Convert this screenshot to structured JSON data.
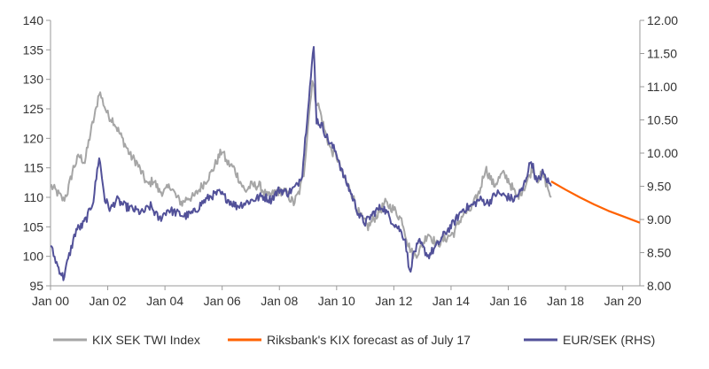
{
  "chart_data": {
    "type": "line",
    "title": "",
    "xlabel": "",
    "ylabel": "",
    "x_tick_labels": [
      "Jan 00",
      "Jan 02",
      "Jan 04",
      "Jan 06",
      "Jan 08",
      "Jan 10",
      "Jan 12",
      "Jan 14",
      "Jan 16",
      "Jan 18",
      "Jan 20"
    ],
    "x_tick_years": [
      2000,
      2002,
      2004,
      2006,
      2008,
      2010,
      2012,
      2014,
      2016,
      2018,
      2020
    ],
    "xlim": [
      2000,
      2020.6
    ],
    "y_left": {
      "lim": [
        95,
        140
      ],
      "ticks": [
        95,
        100,
        105,
        110,
        115,
        120,
        125,
        130,
        135,
        140
      ]
    },
    "y_right": {
      "lim": [
        8.0,
        12.0
      ],
      "ticks": [
        "8.00",
        "8.50",
        "9.00",
        "9.50",
        "10.00",
        "10.50",
        "11.00",
        "11.50",
        "12.00"
      ]
    },
    "legend_position": "bottom",
    "colors": {
      "kix": "#a6a6a6",
      "forecast": "#ff6200",
      "eursek": "#525199",
      "axis": "#9a9a9a"
    },
    "series": [
      {
        "name": "KIX SEK TWI Index",
        "axis": "left",
        "color": "#a6a6a6",
        "points": [
          [
            2000.0,
            112
          ],
          [
            2000.2,
            111
          ],
          [
            2000.45,
            109.5
          ],
          [
            2000.6,
            111
          ],
          [
            2000.8,
            115
          ],
          [
            2001.0,
            117
          ],
          [
            2001.2,
            116
          ],
          [
            2001.4,
            121
          ],
          [
            2001.6,
            125
          ],
          [
            2001.7,
            128
          ],
          [
            2001.85,
            126
          ],
          [
            2002.0,
            124
          ],
          [
            2002.2,
            123
          ],
          [
            2002.4,
            121
          ],
          [
            2002.6,
            119
          ],
          [
            2002.8,
            117
          ],
          [
            2003.0,
            116
          ],
          [
            2003.2,
            114
          ],
          [
            2003.4,
            112
          ],
          [
            2003.6,
            113
          ],
          [
            2003.8,
            111
          ],
          [
            2004.0,
            111
          ],
          [
            2004.2,
            112
          ],
          [
            2004.4,
            110
          ],
          [
            2004.6,
            109
          ],
          [
            2004.8,
            110
          ],
          [
            2005.0,
            110
          ],
          [
            2005.3,
            112
          ],
          [
            2005.6,
            114
          ],
          [
            2005.8,
            116
          ],
          [
            2006.0,
            118
          ],
          [
            2006.15,
            116
          ],
          [
            2006.4,
            115
          ],
          [
            2006.6,
            113
          ],
          [
            2006.8,
            111
          ],
          [
            2007.0,
            112
          ],
          [
            2007.3,
            112
          ],
          [
            2007.6,
            110
          ],
          [
            2007.9,
            111
          ],
          [
            2008.2,
            111
          ],
          [
            2008.5,
            109
          ],
          [
            2008.7,
            111
          ],
          [
            2008.85,
            114
          ],
          [
            2009.0,
            122
          ],
          [
            2009.15,
            130
          ],
          [
            2009.25,
            127
          ],
          [
            2009.4,
            125
          ],
          [
            2009.6,
            121
          ],
          [
            2009.8,
            118
          ],
          [
            2010.0,
            117
          ],
          [
            2010.2,
            114
          ],
          [
            2010.5,
            111
          ],
          [
            2010.8,
            107
          ],
          [
            2011.1,
            105
          ],
          [
            2011.4,
            107
          ],
          [
            2011.7,
            109
          ],
          [
            2012.0,
            108
          ],
          [
            2012.3,
            106
          ],
          [
            2012.5,
            102
          ],
          [
            2012.7,
            100
          ],
          [
            2012.9,
            101
          ],
          [
            2013.2,
            104
          ],
          [
            2013.5,
            102
          ],
          [
            2013.8,
            103
          ],
          [
            2014.1,
            104
          ],
          [
            2014.4,
            107
          ],
          [
            2014.7,
            108
          ],
          [
            2015.0,
            111
          ],
          [
            2015.2,
            115
          ],
          [
            2015.5,
            112
          ],
          [
            2015.8,
            114
          ],
          [
            2016.0,
            113
          ],
          [
            2016.3,
            110
          ],
          [
            2016.6,
            112
          ],
          [
            2016.85,
            115
          ],
          [
            2017.0,
            113
          ],
          [
            2017.2,
            114
          ],
          [
            2017.35,
            112
          ],
          [
            2017.5,
            110
          ]
        ]
      },
      {
        "name": "Riksbank's KIX forecast as of July 17",
        "axis": "left",
        "color": "#ff6200",
        "points": [
          [
            2017.5,
            112.7
          ],
          [
            2018.0,
            111.3
          ],
          [
            2018.5,
            110.0
          ],
          [
            2019.0,
            108.8
          ],
          [
            2019.5,
            107.7
          ],
          [
            2020.0,
            106.8
          ],
          [
            2020.6,
            105.7
          ]
        ]
      },
      {
        "name": "EUR/SEK (RHS)",
        "axis": "right",
        "color": "#525199",
        "points": [
          [
            2000.0,
            8.6
          ],
          [
            2000.25,
            8.3
          ],
          [
            2000.45,
            8.12
          ],
          [
            2000.65,
            8.45
          ],
          [
            2000.9,
            8.85
          ],
          [
            2001.1,
            8.9
          ],
          [
            2001.3,
            9.05
          ],
          [
            2001.5,
            9.3
          ],
          [
            2001.7,
            9.95
          ],
          [
            2001.9,
            9.3
          ],
          [
            2002.1,
            9.15
          ],
          [
            2002.3,
            9.3
          ],
          [
            2002.6,
            9.2
          ],
          [
            2002.9,
            9.15
          ],
          [
            2003.2,
            9.1
          ],
          [
            2003.5,
            9.2
          ],
          [
            2003.8,
            9.0
          ],
          [
            2004.1,
            9.15
          ],
          [
            2004.4,
            9.1
          ],
          [
            2004.7,
            9.05
          ],
          [
            2005.0,
            9.1
          ],
          [
            2005.3,
            9.25
          ],
          [
            2005.6,
            9.35
          ],
          [
            2005.9,
            9.4
          ],
          [
            2006.2,
            9.3
          ],
          [
            2006.5,
            9.2
          ],
          [
            2006.8,
            9.25
          ],
          [
            2007.1,
            9.3
          ],
          [
            2007.4,
            9.35
          ],
          [
            2007.7,
            9.3
          ],
          [
            2008.0,
            9.45
          ],
          [
            2008.3,
            9.4
          ],
          [
            2008.6,
            9.5
          ],
          [
            2008.8,
            9.7
          ],
          [
            2009.0,
            10.7
          ],
          [
            2009.2,
            11.6
          ],
          [
            2009.3,
            10.5
          ],
          [
            2009.5,
            10.4
          ],
          [
            2009.7,
            10.2
          ],
          [
            2010.0,
            10.0
          ],
          [
            2010.2,
            9.7
          ],
          [
            2010.5,
            9.4
          ],
          [
            2010.8,
            9.05
          ],
          [
            2011.0,
            8.95
          ],
          [
            2011.3,
            9.1
          ],
          [
            2011.6,
            9.2
          ],
          [
            2011.9,
            9.0
          ],
          [
            2012.2,
            8.85
          ],
          [
            2012.4,
            8.7
          ],
          [
            2012.55,
            8.2
          ],
          [
            2012.7,
            8.5
          ],
          [
            2012.9,
            8.65
          ],
          [
            2013.2,
            8.45
          ],
          [
            2013.5,
            8.6
          ],
          [
            2013.8,
            8.8
          ],
          [
            2014.1,
            8.95
          ],
          [
            2014.4,
            9.15
          ],
          [
            2014.7,
            9.2
          ],
          [
            2015.0,
            9.3
          ],
          [
            2015.3,
            9.25
          ],
          [
            2015.6,
            9.4
          ],
          [
            2015.9,
            9.35
          ],
          [
            2016.2,
            9.3
          ],
          [
            2016.5,
            9.45
          ],
          [
            2016.8,
            9.9
          ],
          [
            2017.0,
            9.55
          ],
          [
            2017.2,
            9.7
          ],
          [
            2017.35,
            9.6
          ],
          [
            2017.5,
            9.5
          ]
        ]
      }
    ]
  }
}
